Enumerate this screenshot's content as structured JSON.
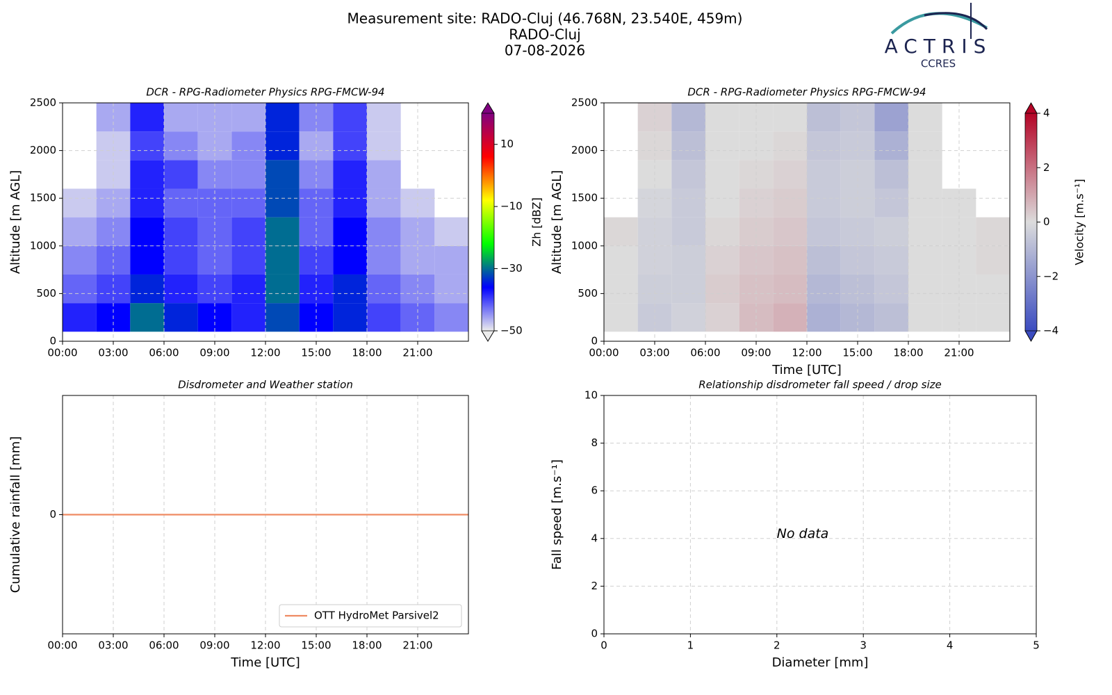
{
  "header": {
    "title": [
      "Measurement site: RADO-Cluj (46.768N, 23.540E, 459m)",
      "RADO-Cluj",
      "07-08-2026"
    ]
  },
  "logo": {
    "name": "ACTRIS",
    "subtitle": "CCRES"
  },
  "chart_data": [
    {
      "type": "heatmap",
      "title": "DCR - RPG-Radiometer Physics RPG-FMCW-94",
      "y_label": "Altitude [m AGL]",
      "colorbar_label": "Zh [dBZ]",
      "xlim": [
        0,
        24
      ],
      "ylim": [
        0,
        2500
      ],
      "xticks": [
        {
          "value": 0,
          "label": "00:00"
        },
        {
          "value": 3,
          "label": "03:00"
        },
        {
          "value": 6,
          "label": "06:00"
        },
        {
          "value": 9,
          "label": "09:00"
        },
        {
          "value": 12,
          "label": "12:00"
        },
        {
          "value": 15,
          "label": "15:00"
        },
        {
          "value": 18,
          "label": "18:00"
        },
        {
          "value": 21,
          "label": "21:00"
        }
      ],
      "yticks": [
        0,
        500,
        1000,
        1500,
        2000,
        2500
      ],
      "zlim": [
        -50,
        20
      ],
      "zticks": [
        {
          "value": -50,
          "label": "−50"
        },
        {
          "value": -30,
          "label": "−30"
        },
        {
          "value": -10,
          "label": "−10"
        },
        10
      ],
      "colormap": [
        "#ececec",
        "#0000ff",
        "#00ff00",
        "#ffff00",
        "#ff0000",
        "#800080"
      ],
      "grid": true,
      "xbins": [
        0,
        2,
        4,
        6,
        8,
        10,
        12,
        14,
        16,
        18,
        20,
        22,
        24
      ],
      "ybins": [
        100,
        400,
        700,
        1000,
        1300,
        1600,
        1900,
        2200,
        2500
      ],
      "values": [
        [
          -38,
          -36,
          -30,
          -34,
          -36,
          -38,
          -32,
          -36,
          -34,
          -40,
          -42,
          -44
        ],
        [
          -42,
          -40,
          -34,
          -38,
          -40,
          -38,
          -30,
          -38,
          -34,
          -42,
          -44,
          -46
        ],
        [
          -44,
          -42,
          -36,
          -40,
          -42,
          -40,
          -30,
          -40,
          -36,
          -44,
          -46,
          -46
        ],
        [
          -46,
          -44,
          -36,
          -40,
          -42,
          -40,
          -30,
          -42,
          -36,
          -44,
          -46,
          -48
        ],
        [
          -48,
          -46,
          -38,
          -42,
          -42,
          -42,
          -32,
          -42,
          -38,
          -46,
          -48,
          null
        ],
        [
          null,
          -48,
          -38,
          -40,
          -44,
          -44,
          -32,
          -44,
          -38,
          -46,
          null,
          null
        ],
        [
          null,
          -48,
          -40,
          -44,
          -46,
          -44,
          -34,
          -46,
          -40,
          -48,
          null,
          null
        ],
        [
          null,
          -46,
          -38,
          -46,
          -46,
          -46,
          -34,
          -44,
          -40,
          -48,
          null,
          null
        ]
      ]
    },
    {
      "type": "heatmap",
      "title": "DCR - RPG-Radiometer Physics RPG-FMCW-94",
      "y_label": "Altitude [m AGL]",
      "x_label": "Time [UTC]",
      "colorbar_label": "Velocity [m.s⁻¹]",
      "xlim": [
        0,
        24
      ],
      "ylim": [
        0,
        2500
      ],
      "xticks": [
        {
          "value": 0,
          "label": "00:00"
        },
        {
          "value": 3,
          "label": "03:00"
        },
        {
          "value": 6,
          "label": "06:00"
        },
        {
          "value": 9,
          "label": "09:00"
        },
        {
          "value": 12,
          "label": "12:00"
        },
        {
          "value": 15,
          "label": "15:00"
        },
        {
          "value": 18,
          "label": "18:00"
        },
        {
          "value": 21,
          "label": "21:00"
        }
      ],
      "yticks": [
        0,
        500,
        1000,
        1500,
        2000,
        2500
      ],
      "zlim": [
        -4,
        4
      ],
      "zticks": [
        {
          "value": -4,
          "label": "−4"
        },
        {
          "value": -2,
          "label": "−2"
        },
        0,
        2,
        4
      ],
      "colormap": [
        "#3b4cc0",
        "#dcdcdc",
        "#b40426"
      ],
      "grid": true,
      "xbins": [
        0,
        2,
        4,
        6,
        8,
        10,
        12,
        14,
        16,
        18,
        20,
        22,
        24
      ],
      "ybins": [
        100,
        400,
        700,
        1000,
        1300,
        1600,
        1900,
        2200,
        2500
      ],
      "values": [
        [
          0,
          -0.5,
          -0.3,
          0.2,
          0.6,
          0.8,
          -1.2,
          -1.0,
          -0.8,
          0,
          0,
          0
        ],
        [
          0,
          -0.4,
          -0.4,
          0.3,
          0.5,
          0.6,
          -1.0,
          -0.8,
          -0.6,
          0,
          0,
          0
        ],
        [
          0,
          -0.3,
          -0.4,
          0.2,
          0.4,
          0.5,
          -0.8,
          -0.6,
          -0.5,
          0,
          0,
          0.1
        ],
        [
          0.1,
          -0.3,
          -0.5,
          0.1,
          0.3,
          0.4,
          -0.6,
          -0.5,
          -0.4,
          0,
          0,
          0.1
        ],
        [
          null,
          -0.2,
          -0.5,
          0,
          0.2,
          0.3,
          -0.5,
          -0.4,
          -0.6,
          0,
          0,
          null
        ],
        [
          null,
          0,
          -0.6,
          0,
          0.1,
          0.2,
          -0.5,
          -0.4,
          -0.8,
          0,
          null,
          null
        ],
        [
          null,
          0.1,
          -0.8,
          0,
          0,
          0.1,
          -0.6,
          -0.5,
          -1.2,
          0,
          null,
          null
        ],
        [
          null,
          0.2,
          -1.0,
          0,
          0,
          0,
          -0.8,
          -0.6,
          -1.6,
          0,
          null,
          null
        ]
      ]
    },
    {
      "type": "line",
      "title": "Disdrometer and Weather station",
      "y_label": "Cumulative rainfall [mm]",
      "x_label": "Time [UTC]",
      "xlim": [
        0,
        24
      ],
      "ylim": [
        -1,
        1
      ],
      "xticks": [
        {
          "value": 0,
          "label": "00:00"
        },
        {
          "value": 3,
          "label": "03:00"
        },
        {
          "value": 6,
          "label": "06:00"
        },
        {
          "value": 9,
          "label": "09:00"
        },
        {
          "value": 12,
          "label": "12:00"
        },
        {
          "value": 15,
          "label": "15:00"
        },
        {
          "value": 18,
          "label": "18:00"
        },
        {
          "value": 21,
          "label": "21:00"
        }
      ],
      "yticks": [
        0
      ],
      "grid": true,
      "legend": "lower-right",
      "x": [
        0,
        24
      ],
      "series": [
        {
          "name": "OTT HydroMet Parsivel2",
          "color": "#ef8a62",
          "values": [
            0,
            0
          ]
        }
      ]
    },
    {
      "type": "scatter",
      "title": "Relationship disdrometer fall speed / drop size",
      "y_label": "Fall speed [m.s⁻¹]",
      "x_label": "Diameter [mm]",
      "xlim": [
        0,
        5
      ],
      "ylim": [
        0,
        10
      ],
      "xticks": [
        0,
        1,
        2,
        3,
        4,
        5
      ],
      "yticks": [
        0,
        2,
        4,
        6,
        8,
        10
      ],
      "grid": true,
      "annotation": "No data"
    }
  ]
}
